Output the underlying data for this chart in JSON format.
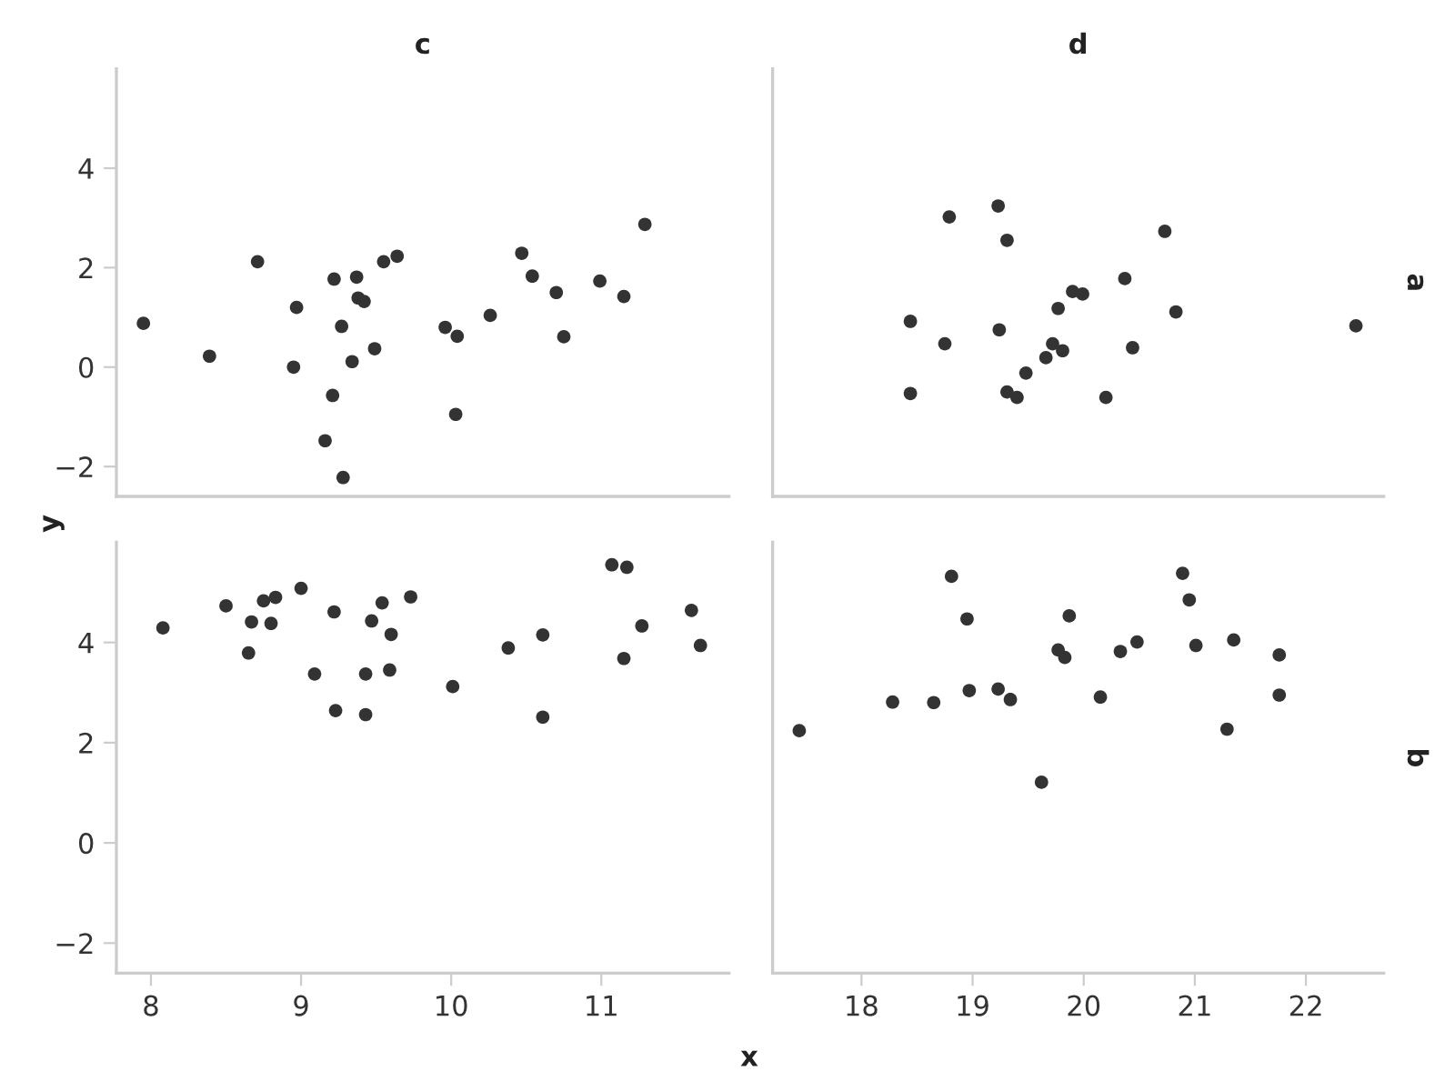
{
  "chart_data": [
    {
      "type": "scatter",
      "title": "c",
      "ylabel": "y",
      "color": "#333333",
      "marker": "circle",
      "grid": false,
      "tick_labels": "y",
      "xlim": [
        7.77,
        11.85
      ],
      "ylim": [
        -2.6,
        6
      ],
      "yticks": [
        -2,
        0,
        2,
        4
      ],
      "x": [
        7.95,
        8.39,
        8.71,
        8.97,
        8.95,
        9.22,
        9.37,
        9.38,
        9.42,
        9.27,
        9.34,
        9.49,
        9.21,
        9.16,
        9.28,
        9.55,
        9.64,
        9.96,
        10.04,
        10.03,
        10.26,
        10.47,
        10.54,
        10.7,
        10.75,
        10.99,
        11.15,
        11.29
      ],
      "values": [
        0.88,
        0.22,
        2.12,
        1.2,
        0.0,
        1.77,
        1.81,
        1.39,
        1.32,
        0.82,
        0.11,
        0.37,
        -0.57,
        -1.48,
        -2.22,
        2.12,
        2.23,
        0.8,
        0.62,
        -0.95,
        1.04,
        2.29,
        1.83,
        1.5,
        0.61,
        1.73,
        1.42,
        2.87
      ]
    },
    {
      "type": "scatter",
      "title": "d",
      "y2label": "a",
      "color": "#333333",
      "marker": "circle",
      "grid": false,
      "tick_labels": false,
      "xlim": [
        17.2,
        22.7
      ],
      "ylim": [
        -2.6,
        6
      ],
      "x": [
        18.79,
        19.23,
        19.31,
        20.73,
        20.37,
        19.9,
        19.99,
        19.77,
        20.83,
        22.45,
        18.44,
        19.24,
        18.75,
        19.72,
        19.81,
        19.66,
        20.44,
        19.48,
        18.44,
        19.31,
        19.4,
        20.2
      ],
      "values": [
        3.02,
        3.24,
        2.55,
        2.73,
        1.78,
        1.52,
        1.47,
        1.18,
        1.11,
        0.83,
        0.92,
        0.75,
        0.47,
        0.47,
        0.33,
        0.19,
        0.39,
        -0.12,
        -0.53,
        -0.5,
        -0.61,
        -0.61
      ]
    },
    {
      "type": "scatter",
      "xlabel": "x",
      "color": "#333333",
      "marker": "circle",
      "grid": false,
      "xlim": [
        7.77,
        11.85
      ],
      "ylim": [
        -2.6,
        6
      ],
      "xticks": [
        8,
        9,
        10,
        11
      ],
      "yticks": [
        -2,
        0,
        2,
        4
      ],
      "x": [
        8.08,
        8.5,
        8.67,
        8.65,
        8.75,
        8.83,
        8.8,
        9.0,
        9.09,
        9.22,
        9.23,
        9.43,
        9.43,
        9.47,
        9.54,
        9.6,
        9.59,
        9.73,
        10.01,
        10.38,
        10.61,
        10.61,
        11.07,
        11.17,
        11.15,
        11.27,
        11.6,
        11.66
      ],
      "values": [
        4.29,
        4.73,
        4.41,
        3.79,
        4.83,
        4.9,
        4.38,
        5.08,
        3.37,
        4.61,
        2.64,
        3.37,
        2.56,
        4.43,
        4.79,
        4.16,
        3.45,
        4.91,
        3.12,
        3.89,
        4.15,
        2.51,
        5.55,
        5.5,
        3.68,
        4.33,
        4.64,
        3.94
      ]
    },
    {
      "type": "scatter",
      "y2label": "b",
      "color": "#333333",
      "marker": "circle",
      "grid": false,
      "tick_labels": "x",
      "xlim": [
        17.2,
        22.7
      ],
      "ylim": [
        -2.6,
        6
      ],
      "xticks": [
        18,
        19,
        20,
        21,
        22
      ],
      "x": [
        17.44,
        18.28,
        18.65,
        18.81,
        18.95,
        18.97,
        19.23,
        19.34,
        19.62,
        19.77,
        19.83,
        19.87,
        20.15,
        20.33,
        20.48,
        20.89,
        20.95,
        21.01,
        21.29,
        21.35,
        21.76,
        21.76
      ],
      "values": [
        2.24,
        2.81,
        2.8,
        5.32,
        4.47,
        3.04,
        3.07,
        2.86,
        1.21,
        3.85,
        3.7,
        4.53,
        2.91,
        3.82,
        4.01,
        5.38,
        4.85,
        3.94,
        2.27,
        4.05,
        3.75,
        2.95
      ]
    }
  ]
}
